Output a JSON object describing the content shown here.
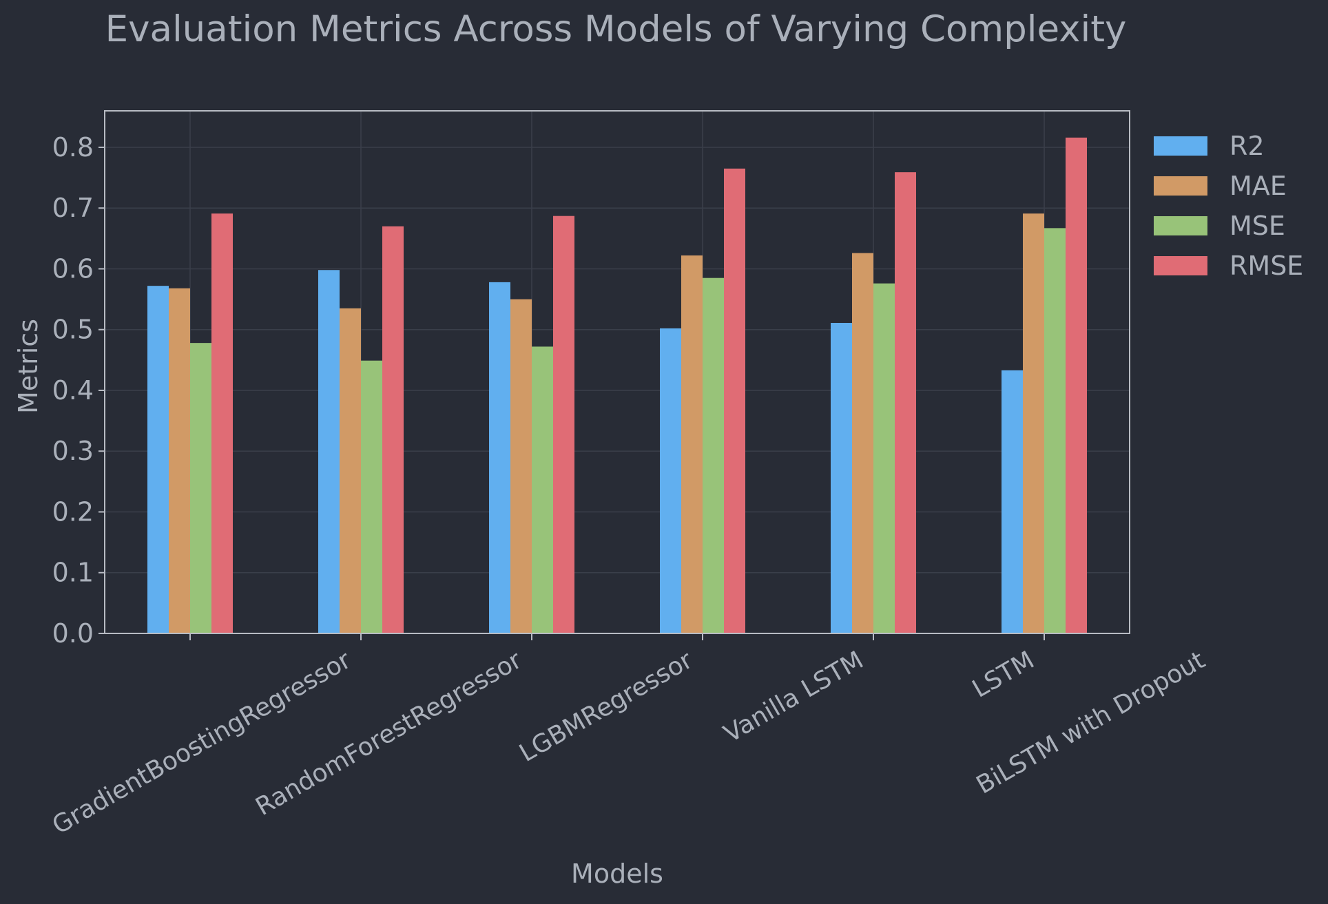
{
  "chart_data": {
    "type": "bar",
    "title": "Evaluation Metrics Across Models of Varying Complexity",
    "xlabel": "Models",
    "ylabel": "Metrics",
    "categories": [
      "GradientBoostingRegressor",
      "RandomForestRegressor",
      "LGBMRegressor",
      "Vanilla LSTM",
      "LSTM",
      "BiLSTM with Dropout"
    ],
    "series": [
      {
        "name": "R2",
        "values": [
          0.572,
          0.598,
          0.578,
          0.502,
          0.511,
          0.433
        ]
      },
      {
        "name": "MAE",
        "values": [
          0.568,
          0.535,
          0.55,
          0.622,
          0.626,
          0.691
        ]
      },
      {
        "name": "MSE",
        "values": [
          0.478,
          0.449,
          0.472,
          0.585,
          0.576,
          0.667
        ]
      },
      {
        "name": "RMSE",
        "values": [
          0.691,
          0.67,
          0.687,
          0.765,
          0.759,
          0.816
        ]
      }
    ],
    "ylim": [
      0,
      0.86
    ],
    "yticks": [
      "0.0",
      "0.1",
      "0.2",
      "0.3",
      "0.4",
      "0.5",
      "0.6",
      "0.7",
      "0.8"
    ],
    "grid": true,
    "legend_position": "outside-top-right",
    "colors": {
      "background": "#282c36",
      "text": "#aab0ba",
      "axis": "#b8bcc4",
      "grid": "#3a3f4a",
      "series": [
        "#61afef",
        "#d19a66",
        "#98c379",
        "#e06c75"
      ]
    }
  }
}
